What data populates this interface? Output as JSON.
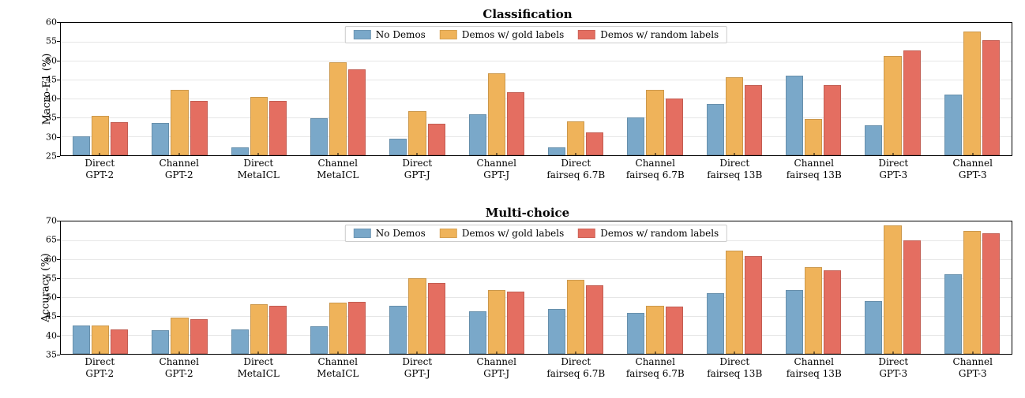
{
  "colors": {
    "no_demos": "#7aa8c9",
    "gold": "#efb35a",
    "random": "#e46e61",
    "grid": "#e6e6e6",
    "border": "#000000",
    "background": "#ffffff"
  },
  "legend": {
    "items": [
      {
        "key": "no_demos",
        "label": "No Demos"
      },
      {
        "key": "gold",
        "label": "Demos w/ gold labels"
      },
      {
        "key": "random",
        "label": "Demos w/ random labels"
      }
    ]
  },
  "layout": {
    "bar_rel_width": 0.22,
    "group_inner_gap_rel": 0.02,
    "font_title_pt": 15,
    "font_axis_pt": 13,
    "font_tick_pt": 11
  },
  "panels": [
    {
      "id": "classification",
      "title": "Classification",
      "ylabel": "Macro-F1 (%)",
      "ylim": [
        25,
        60
      ],
      "ytick_step": 5,
      "categories": [
        {
          "line1": "Direct",
          "line2": "GPT-2"
        },
        {
          "line1": "Channel",
          "line2": "GPT-2"
        },
        {
          "line1": "Direct",
          "line2": "MetaICL"
        },
        {
          "line1": "Channel",
          "line2": "MetaICL"
        },
        {
          "line1": "Direct",
          "line2": "GPT-J"
        },
        {
          "line1": "Channel",
          "line2": "GPT-J"
        },
        {
          "line1": "Direct",
          "line2": "fairseq 6.7B"
        },
        {
          "line1": "Channel",
          "line2": "fairseq 6.7B"
        },
        {
          "line1": "Direct",
          "line2": "fairseq 13B"
        },
        {
          "line1": "Channel",
          "line2": "fairseq 13B"
        },
        {
          "line1": "Direct",
          "line2": "GPT-3"
        },
        {
          "line1": "Channel",
          "line2": "GPT-3"
        }
      ],
      "series": {
        "no_demos": [
          30.0,
          33.5,
          27.0,
          34.7,
          29.3,
          35.8,
          27.0,
          35.0,
          38.5,
          46.0,
          33.0,
          41.1
        ],
        "gold": [
          35.5,
          42.3,
          40.4,
          49.5,
          36.7,
          46.7,
          34.0,
          42.3,
          45.7,
          34.5,
          51.2,
          57.7
        ],
        "random": [
          33.8,
          39.4,
          39.4,
          47.7,
          33.3,
          41.7,
          31.0,
          40.0,
          43.5,
          43.5,
          52.8,
          55.4
        ]
      }
    },
    {
      "id": "multichoice",
      "title": "Multi-choice",
      "ylabel": "Accuracy (%)",
      "ylim": [
        35,
        70
      ],
      "ytick_step": 5,
      "categories": [
        {
          "line1": "Direct",
          "line2": "GPT-2"
        },
        {
          "line1": "Channel",
          "line2": "GPT-2"
        },
        {
          "line1": "Direct",
          "line2": "MetaICL"
        },
        {
          "line1": "Channel",
          "line2": "MetaICL"
        },
        {
          "line1": "Direct",
          "line2": "GPT-J"
        },
        {
          "line1": "Channel",
          "line2": "GPT-J"
        },
        {
          "line1": "Direct",
          "line2": "fairseq 6.7B"
        },
        {
          "line1": "Channel",
          "line2": "fairseq 6.7B"
        },
        {
          "line1": "Direct",
          "line2": "fairseq 13B"
        },
        {
          "line1": "Channel",
          "line2": "fairseq 13B"
        },
        {
          "line1": "Direct",
          "line2": "GPT-3"
        },
        {
          "line1": "Channel",
          "line2": "GPT-3"
        }
      ],
      "series": {
        "no_demos": [
          42.5,
          41.3,
          41.5,
          42.3,
          47.8,
          46.2,
          46.8,
          45.8,
          51.0,
          51.8,
          49.0,
          56.1
        ],
        "gold": [
          42.5,
          44.5,
          48.2,
          48.6,
          55.0,
          51.8,
          54.6,
          47.8,
          62.3,
          58.0,
          68.9,
          67.5
        ],
        "random": [
          41.5,
          44.2,
          47.7,
          48.7,
          53.7,
          51.4,
          53.2,
          47.4,
          60.9,
          57.0,
          65.1,
          66.9
        ]
      }
    }
  ]
}
